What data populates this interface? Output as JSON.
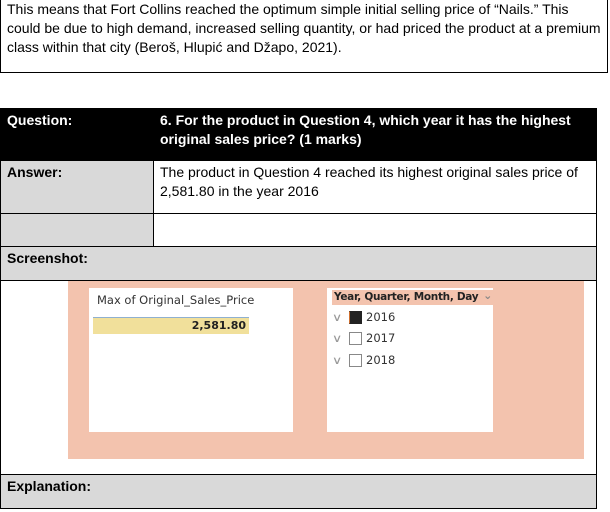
{
  "intro_paragraph": "This means that Fort Collins reached the optimum simple initial selling price of “Nails.” This could be due to high demand, increased selling quantity, or had priced the product at a premium class within that city (Beroš, Hlupić and Džapo, 2021).",
  "table": {
    "question_label": "Question:",
    "question_text": "6. For the product in Question 4, which year it has the highest original sales price?  (1 marks)",
    "answer_label": "Answer:",
    "answer_text": "The product in Question 4 reached its highest original sales price of 2,581.80 in the year 2016",
    "screenshot_label": "Screenshot:",
    "explanation_label": "Explanation:"
  },
  "screenshot": {
    "card": {
      "title": "Max of Original_Sales_Price",
      "value": "2,581.80"
    },
    "slicer": {
      "header": "Year, Quarter, Month, Day",
      "items": [
        {
          "label": "2016",
          "checked": true
        },
        {
          "label": "2017",
          "checked": false
        },
        {
          "label": "2018",
          "checked": false
        }
      ]
    },
    "colors": {
      "background": "#f3c3ae",
      "value_highlight": "#f1e09b"
    }
  }
}
